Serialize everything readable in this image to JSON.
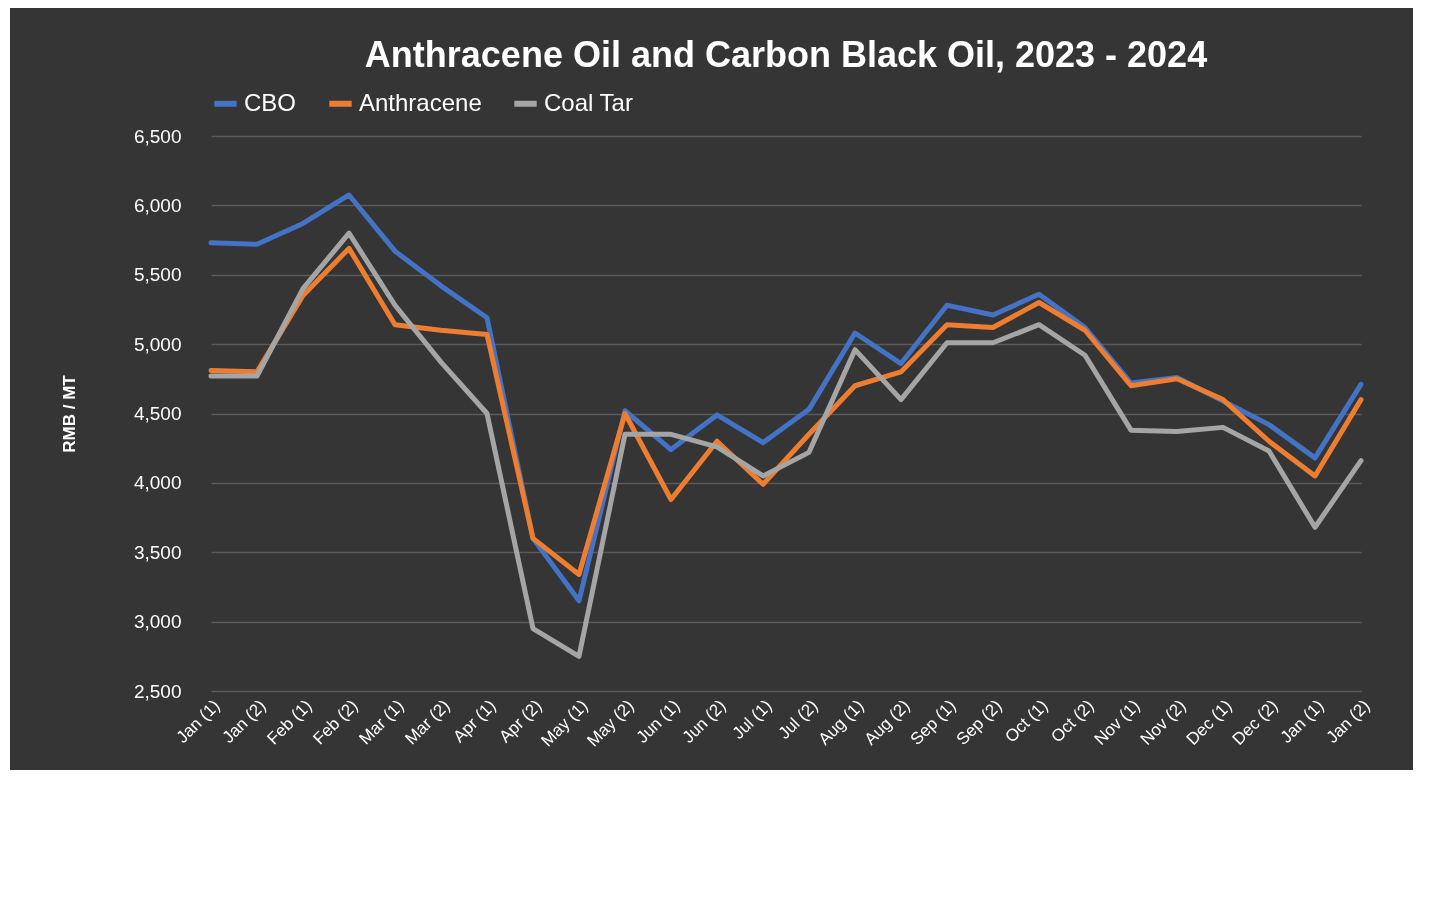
{
  "chart_data": {
    "type": "line",
    "title": "Anthracene Oil and Carbon Black Oil, 2023 - 2024",
    "ylabel": "RMB / MT",
    "categories": [
      "Jan (1)",
      "Jan (2)",
      "Feb (1)",
      "Feb (2)",
      "Mar (1)",
      "Mar (2)",
      "Apr (1)",
      "Apr (2)",
      "May (1)",
      "May (2)",
      "Jun (1)",
      "Jun (2)",
      "Jul (1)",
      "Jul (2)",
      "Aug (1)",
      "Aug (2)",
      "Sep (1)",
      "Sep (2)",
      "Oct (1)",
      "Oct (2)",
      "Nov (1)",
      "Nov (2)",
      "Dec (1)",
      "Dec (2)",
      "Jan (1)",
      "Jan (2)"
    ],
    "series": [
      {
        "name": "CBO",
        "color": "#4472c4",
        "values": [
          5730,
          5720,
          5870,
          6075,
          5670,
          5420,
          5190,
          3600,
          3150,
          4520,
          4240,
          4490,
          4290,
          4530,
          5080,
          4860,
          5280,
          5210,
          5360,
          5120,
          4720,
          4760,
          4590,
          4420,
          4180,
          4710
        ]
      },
      {
        "name": "Anthracene",
        "color": "#ed7d31",
        "values": [
          4810,
          4800,
          5350,
          5690,
          5140,
          5100,
          5070,
          3600,
          3340,
          4500,
          3880,
          4300,
          3990,
          4350,
          4700,
          4800,
          5140,
          5120,
          5300,
          5100,
          4700,
          4750,
          4600,
          4300,
          4050,
          4600
        ]
      },
      {
        "name": "Coal Tar",
        "color": "#a5a5a5",
        "values": [
          4770,
          4770,
          5400,
          5800,
          5280,
          4870,
          4500,
          2950,
          2750,
          4350,
          4350,
          4260,
          4050,
          4220,
          4960,
          4600,
          5010,
          5010,
          5140,
          4920,
          4380,
          4370,
          4400,
          4230,
          3680,
          4160
        ]
      }
    ],
    "ylim": [
      2500,
      6500
    ],
    "yticks": [
      {
        "value": 2500,
        "label": "2,500"
      },
      {
        "value": 3000,
        "label": "3,000"
      },
      {
        "value": 3500,
        "label": "3,500"
      },
      {
        "value": 4000,
        "label": "4,000"
      },
      {
        "value": 4500,
        "label": "4,500"
      },
      {
        "value": 5000,
        "label": "5,000"
      },
      {
        "value": 5500,
        "label": "5,500"
      },
      {
        "value": 6000,
        "label": "6,000"
      },
      {
        "value": 6500,
        "label": "6,500"
      }
    ],
    "grid": "y",
    "legend": "top",
    "marker": "none",
    "line_style": "solid"
  }
}
